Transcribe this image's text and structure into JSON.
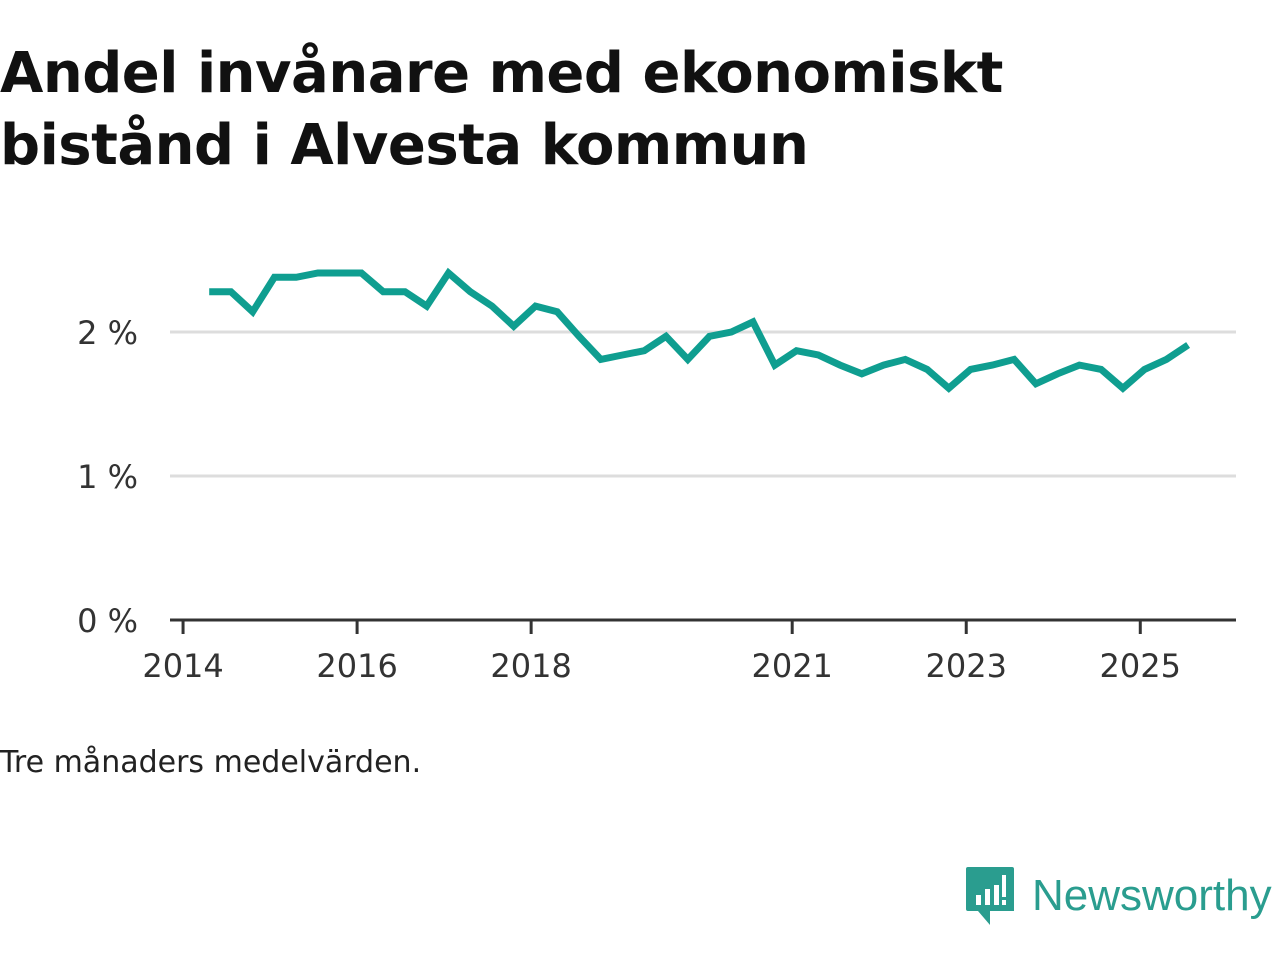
{
  "title": "Andel invånare med ekonomiskt bistånd i Alvesta kommun",
  "note": "Tre månaders medelvärden.",
  "brand": {
    "name": "Newsworthy",
    "icon": "newsworthy-logo-icon",
    "color": "#2a9d8f"
  },
  "colors": {
    "line": "#0f9e90",
    "grid": "#dddddd",
    "axis": "#333333",
    "text": "#333333"
  },
  "chart_data": {
    "type": "line",
    "title": "Andel invånare med ekonomiskt bistånd i Alvesta kommun",
    "xlabel": "",
    "ylabel": "",
    "xlim": [
      2013.85,
      2026.1
    ],
    "ylim": [
      0,
      2.5
    ],
    "yticks": [
      0,
      1,
      2
    ],
    "ytick_labels": [
      "0 %",
      "1 %",
      "2 %"
    ],
    "xticks": [
      2014,
      2016,
      2018,
      2021,
      2023,
      2025
    ],
    "xtick_labels": [
      "2014",
      "2016",
      "2018",
      "2021",
      "2023",
      "2025"
    ],
    "grid": true,
    "series": [
      {
        "name": "Andel invånare med ekonomiskt bistånd",
        "x": [
          2014.3,
          2014.55,
          2014.8,
          2015.05,
          2015.3,
          2015.55,
          2015.8,
          2016.05,
          2016.3,
          2016.55,
          2016.8,
          2017.05,
          2017.3,
          2017.55,
          2017.8,
          2018.05,
          2018.3,
          2018.55,
          2018.8,
          2019.05,
          2019.3,
          2019.55,
          2019.8,
          2020.05,
          2020.3,
          2020.55,
          2020.8,
          2021.05,
          2021.3,
          2021.55,
          2021.8,
          2022.05,
          2022.3,
          2022.55,
          2022.8,
          2023.05,
          2023.3,
          2023.55,
          2023.8,
          2024.05,
          2024.3,
          2024.55,
          2024.8,
          2025.05,
          2025.3,
          2025.55
        ],
        "values": [
          2.28,
          2.28,
          2.14,
          2.38,
          2.38,
          2.41,
          2.41,
          2.41,
          2.28,
          2.28,
          2.18,
          2.41,
          2.28,
          2.18,
          2.04,
          2.18,
          2.14,
          1.97,
          1.81,
          1.84,
          1.87,
          1.97,
          1.81,
          1.97,
          2.0,
          2.07,
          1.77,
          1.87,
          1.84,
          1.77,
          1.71,
          1.77,
          1.81,
          1.74,
          1.61,
          1.74,
          1.77,
          1.81,
          1.64,
          1.71,
          1.77,
          1.74,
          1.61,
          1.74,
          1.81,
          1.91
        ]
      }
    ]
  }
}
